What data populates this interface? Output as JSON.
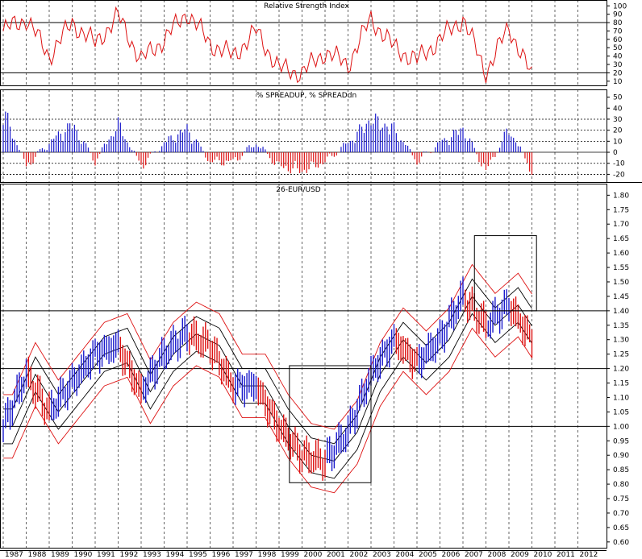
{
  "panels": {
    "rsi": {
      "title": "Relative Strength Index",
      "ticks": [
        "100",
        "90",
        "80",
        "70",
        "60",
        "50",
        "40",
        "30",
        "20",
        "10"
      ]
    },
    "spread": {
      "title": "% SPREADUP, % SPREADdn",
      "ticks": [
        "50",
        "40",
        "30",
        "20",
        "10",
        "0",
        "-10",
        "-20"
      ]
    },
    "price": {
      "title": "26-EUR/USD",
      "ticks": [
        "1.80",
        "1.75",
        "1.70",
        "1.65",
        "1.60",
        "1.55",
        "1.50",
        "1.45",
        "1.40",
        "1.35",
        "1.30",
        "1.25",
        "1.20",
        "1.15",
        "1.10",
        "1.05",
        "1.00",
        "0.95",
        "0.90",
        "0.85",
        "0.80",
        "0.75",
        "0.70",
        "0.65",
        "0.60"
      ]
    }
  },
  "x_axis": {
    "years": [
      "1987",
      "1988",
      "1989",
      "1990",
      "1991",
      "1992",
      "1993",
      "1994",
      "1995",
      "1996",
      "1997",
      "1998",
      "1999",
      "2000",
      "2001",
      "2002",
      "2003",
      "2004",
      "2005",
      "2006",
      "2007",
      "2008",
      "2009",
      "2010",
      "2011",
      "2012"
    ]
  },
  "colors": {
    "up": "#1a1acc",
    "down": "#dd1111",
    "band": "#dd1111",
    "ma": "#000000",
    "grid": "#000000"
  },
  "chart_data": [
    {
      "type": "line",
      "title": "Relative Strength Index",
      "ylim": [
        0,
        105
      ],
      "reference_lines": [
        20,
        80
      ],
      "x": [
        "1987",
        "1988",
        "1989",
        "1990",
        "1991",
        "1992",
        "1993",
        "1994",
        "1995",
        "1996",
        "1997",
        "1998",
        "1999",
        "2000",
        "2001",
        "2002",
        "2003",
        "2004",
        "2005",
        "2006",
        "2007",
        "2008",
        "2009",
        "2010"
      ],
      "series": [
        {
          "values": [
            70,
            85,
            40,
            80,
            55,
            88,
            35,
            60,
            92,
            55,
            40,
            70,
            25,
            20,
            45,
            30,
            85,
            50,
            35,
            60,
            85,
            20,
            75,
            15
          ]
        }
      ]
    },
    {
      "type": "bar",
      "title": "% SPREADUP, % SPREADdn",
      "ylim": [
        -25,
        55
      ],
      "reference_lines": [
        30,
        20,
        10,
        0,
        -10,
        -20
      ],
      "x": [
        "1987",
        "1988",
        "1989",
        "1990",
        "1991",
        "1992",
        "1993",
        "1994",
        "1995",
        "1996",
        "1997",
        "1998",
        "1999",
        "2000",
        "2001",
        "2002",
        "2003",
        "2004",
        "2005",
        "2006",
        "2007",
        "2008",
        "2009",
        "2010"
      ],
      "series": [
        {
          "values": [
            45,
            -15,
            10,
            30,
            -10,
            30,
            -15,
            10,
            25,
            -10,
            -10,
            10,
            -15,
            -20,
            -10,
            10,
            35,
            25,
            -10,
            10,
            25,
            -20,
            25,
            -20
          ]
        }
      ]
    },
    {
      "type": "line",
      "title": "26-EUR/USD",
      "ylim": [
        0.58,
        1.82
      ],
      "reference_lines": [
        1.4,
        1.2,
        1.0
      ],
      "x": [
        "1987",
        "1988",
        "1989",
        "1990",
        "1991",
        "1992",
        "1993",
        "1994",
        "1995",
        "1996",
        "1997",
        "1998",
        "1999",
        "2000",
        "2001",
        "2002",
        "2003",
        "2004",
        "2005",
        "2006",
        "2007",
        "2008",
        "2009",
        "2010"
      ],
      "series": [
        {
          "values": [
            1.0,
            1.18,
            1.05,
            1.15,
            1.25,
            1.28,
            1.12,
            1.25,
            1.32,
            1.28,
            1.14,
            1.14,
            1.0,
            0.9,
            0.88,
            0.98,
            1.18,
            1.3,
            1.22,
            1.3,
            1.45,
            1.35,
            1.42,
            1.3
          ]
        }
      ]
    }
  ]
}
